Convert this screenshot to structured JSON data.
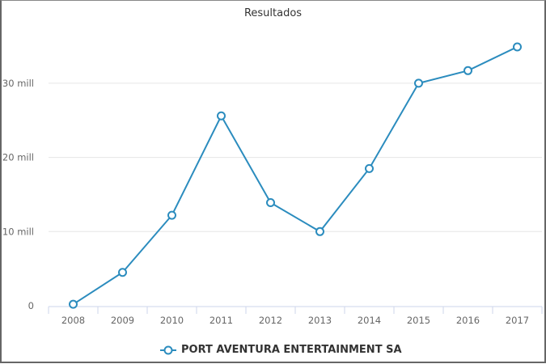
{
  "chart_data": {
    "type": "line",
    "title": "Resultados",
    "xlabel": "",
    "ylabel": "",
    "categories": [
      "2008",
      "2009",
      "2010",
      "2011",
      "2012",
      "2013",
      "2014",
      "2015",
      "2016",
      "2017"
    ],
    "series": [
      {
        "name": "PORT AVENTURA ENTERTAINMENT SA",
        "color": "#2b8cbe",
        "values": [
          0.2,
          4.5,
          12.2,
          25.6,
          13.9,
          10.0,
          18.5,
          30.0,
          31.7,
          34.9
        ]
      }
    ],
    "y_ticks": [
      "0",
      "10 mill",
      "20 mill",
      "30 mill"
    ],
    "y_tick_values": [
      0,
      10,
      20,
      30
    ],
    "ylim": [
      0,
      37
    ],
    "units": "millions",
    "grid": true,
    "legend_position": "bottom"
  }
}
